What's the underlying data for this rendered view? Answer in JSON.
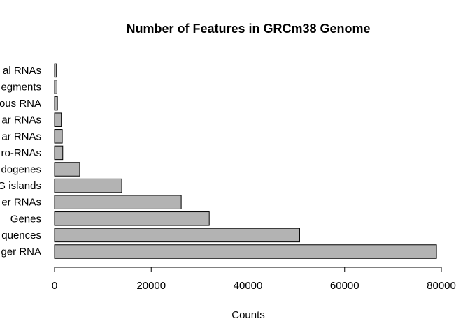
{
  "chart_data": {
    "type": "bar",
    "orientation": "horizontal",
    "title": "Number of Features in GRCm38 Genome",
    "xlabel": "Counts",
    "ylabel": "",
    "categories": [
      "ger RNA",
      "quences",
      "Genes",
      "er RNAs",
      "G islands",
      "dogenes",
      "ro-RNAs",
      "ar RNAs",
      "ar RNAs",
      "ous RNA",
      "egments",
      "al RNAs"
    ],
    "values": [
      79000,
      50700,
      32000,
      26200,
      13900,
      5200,
      1700,
      1600,
      1400,
      600,
      500,
      400
    ],
    "xlim": [
      0,
      80000
    ],
    "xticks": [
      0,
      20000,
      40000,
      60000,
      80000
    ],
    "grid": false,
    "bar_color": "#b3b3b3",
    "bar_edge_color": "#000000"
  }
}
